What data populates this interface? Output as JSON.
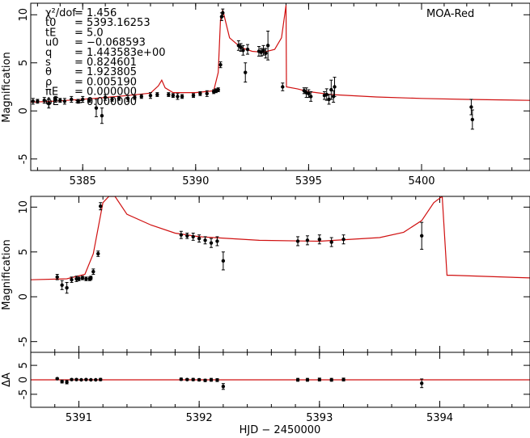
{
  "observatory_label": "MOA-Red",
  "x_axis_title": "HJD − 2450000",
  "y_axis_title": "Magnification",
  "resid_axis_title": "ΔA",
  "params": [
    {
      "name": "χ²/dof",
      "value": "= 1.456"
    },
    {
      "name": "t0",
      "value": "= 5393.16253"
    },
    {
      "name": "tE",
      "value": "= 5.0"
    },
    {
      "name": "u0",
      "value": "= −0.068593"
    },
    {
      "name": "q",
      "value": "= 1.443583e+00"
    },
    {
      "name": "s",
      "value": "= 0.824601"
    },
    {
      "name": "θ",
      "value": "= 1.923805"
    },
    {
      "name": "ρ",
      "value": "= 0.005190"
    },
    {
      "name": "πE",
      "value": "= 0.000000"
    },
    {
      "name": "ϕE",
      "value": "= 0.000000"
    }
  ],
  "chart_data": [
    {
      "type": "line",
      "panel": "top",
      "xlabel": "",
      "ylabel": "Magnification",
      "xlim": [
        5382.7,
        5404.8
      ],
      "ylim": [
        -6.2,
        11.2
      ],
      "xticks": [
        5385,
        5390,
        5395,
        5400
      ],
      "yticks": [
        -5,
        0,
        5,
        10
      ],
      "model": {
        "name": "",
        "x": [
          5382.7,
          5384,
          5385.5,
          5387,
          5388,
          5388.35,
          5388.5,
          5388.65,
          5389,
          5390,
          5390.8,
          5391.0,
          5391.1,
          5391.2,
          5391.5,
          5392.0,
          5392.5,
          5393.0,
          5393.5,
          5393.8,
          5394.0,
          5394.02,
          5394.5,
          5395,
          5396,
          5398,
          5400,
          5402,
          5404.8
        ],
        "y": [
          0.9,
          1.05,
          1.3,
          1.6,
          1.85,
          2.6,
          3.2,
          2.4,
          1.9,
          1.9,
          2.1,
          4.0,
          9.5,
          10.5,
          7.6,
          6.6,
          6.2,
          6.1,
          6.4,
          7.6,
          11.0,
          2.5,
          2.3,
          2.0,
          1.7,
          1.45,
          1.3,
          1.2,
          1.1
        ]
      },
      "points": {
        "x": [
          5382.8,
          5383.0,
          5383.3,
          5383.5,
          5383.8,
          5384.0,
          5384.2,
          5384.5,
          5384.8,
          5385.0,
          5385.3,
          5385.6,
          5385.85,
          5386.0,
          5386.3,
          5386.6,
          5387.0,
          5387.3,
          5387.6,
          5388.0,
          5388.3,
          5388.8,
          5389.0,
          5389.2,
          5389.4,
          5389.9,
          5390.2,
          5390.5,
          5390.8,
          5390.9,
          5391.0,
          5391.1,
          5391.15,
          5391.2,
          5391.9,
          5392.0,
          5392.1,
          5392.2,
          5392.3,
          5392.8,
          5392.9,
          5393.0,
          5393.1,
          5393.2,
          5393.85,
          5394.8,
          5394.9,
          5395.0,
          5395.1,
          5395.7,
          5395.8,
          5395.9,
          5396.0,
          5396.1,
          5396.15,
          5402.2,
          5402.25
        ],
        "y": [
          1.0,
          1.0,
          1.1,
          0.8,
          1.2,
          1.1,
          1.0,
          1.2,
          1.0,
          1.2,
          1.1,
          0.3,
          -0.5,
          1.4,
          1.2,
          1.3,
          1.3,
          1.4,
          1.5,
          1.6,
          1.7,
          1.7,
          1.6,
          1.5,
          1.5,
          1.6,
          1.8,
          1.8,
          2.0,
          2.1,
          2.2,
          4.8,
          9.8,
          10.2,
          6.8,
          6.6,
          6.3,
          4.0,
          6.4,
          6.2,
          6.1,
          6.3,
          6.0,
          6.8,
          2.5,
          2.1,
          1.9,
          1.8,
          1.5,
          1.6,
          1.7,
          1.2,
          2.2,
          1.5,
          2.5,
          0.4,
          -0.9
        ],
        "err": [
          0.3,
          0.2,
          0.3,
          0.5,
          0.3,
          0.2,
          0.3,
          0.3,
          0.2,
          0.3,
          0.2,
          0.9,
          0.8,
          0.3,
          0.2,
          0.2,
          0.3,
          0.2,
          0.2,
          0.3,
          0.2,
          0.2,
          0.2,
          0.3,
          0.2,
          0.2,
          0.2,
          0.3,
          0.2,
          0.2,
          0.2,
          0.3,
          0.4,
          0.4,
          0.5,
          0.4,
          0.5,
          1.0,
          0.5,
          0.5,
          0.4,
          0.5,
          0.5,
          1.5,
          0.4,
          0.3,
          0.5,
          0.4,
          0.5,
          0.4,
          0.6,
          0.5,
          1.0,
          0.6,
          1.0,
          0.8,
          1.0
        ]
      }
    },
    {
      "type": "line",
      "panel": "middle",
      "xlabel": "",
      "ylabel": "Magnification",
      "xlim": [
        5390.6,
        5394.75
      ],
      "ylim": [
        -6.2,
        11.2
      ],
      "xticks": [
        5391,
        5392,
        5393,
        5394
      ],
      "yticks": [
        -5,
        0,
        5,
        10
      ],
      "model": {
        "name": "",
        "x": [
          5390.6,
          5390.9,
          5391.05,
          5391.12,
          5391.2,
          5391.25,
          5391.3,
          5391.4,
          5391.6,
          5391.8,
          5392.0,
          5392.5,
          5393.0,
          5393.5,
          5393.7,
          5393.85,
          5393.95,
          5394.02,
          5394.06,
          5394.1,
          5394.75
        ],
        "y": [
          1.9,
          2.0,
          2.5,
          4.8,
          10.5,
          11.2,
          11.2,
          9.2,
          8.0,
          7.1,
          6.7,
          6.3,
          6.2,
          6.6,
          7.2,
          8.5,
          10.5,
          11.2,
          2.4,
          2.4,
          2.1
        ]
      },
      "points": {
        "x": [
          5390.82,
          5390.86,
          5390.9,
          5390.94,
          5390.98,
          5391.0,
          5391.03,
          5391.06,
          5391.09,
          5391.1,
          5391.12,
          5391.16,
          5391.18,
          5391.85,
          5391.9,
          5391.95,
          5392.0,
          5392.05,
          5392.1,
          5392.15,
          5392.2,
          5392.82,
          5392.9,
          5393.0,
          5393.1,
          5393.2,
          5393.85
        ],
        "y": [
          2.2,
          1.3,
          1.0,
          1.9,
          2.0,
          2.0,
          2.1,
          2.0,
          2.0,
          2.1,
          2.8,
          4.8,
          10.1,
          6.9,
          6.8,
          6.7,
          6.5,
          6.3,
          6.0,
          6.2,
          4.0,
          6.2,
          6.3,
          6.4,
          6.1,
          6.4,
          6.8
        ],
        "err": [
          0.3,
          0.5,
          0.6,
          0.3,
          0.3,
          0.2,
          0.2,
          0.2,
          0.2,
          0.2,
          0.3,
          0.3,
          0.4,
          0.4,
          0.3,
          0.4,
          0.4,
          0.4,
          0.5,
          0.5,
          1.0,
          0.5,
          0.5,
          0.5,
          0.5,
          0.5,
          1.5
        ]
      }
    },
    {
      "type": "scatter",
      "panel": "residuals",
      "xlabel": "HJD − 2450000",
      "ylabel": "ΔA",
      "xlim": [
        5390.6,
        5394.75
      ],
      "ylim": [
        -9.5,
        9.5
      ],
      "xticks": [
        5391,
        5392,
        5393,
        5394
      ],
      "yticks": [
        -5,
        0,
        5
      ],
      "points": {
        "x": [
          5390.82,
          5390.86,
          5390.9,
          5390.94,
          5390.98,
          5391.02,
          5391.06,
          5391.1,
          5391.14,
          5391.18,
          5391.85,
          5391.9,
          5391.95,
          5392.0,
          5392.05,
          5392.1,
          5392.15,
          5392.2,
          5392.82,
          5392.9,
          5393.0,
          5393.1,
          5393.2,
          5393.85
        ],
        "y": [
          0.4,
          -0.6,
          -0.8,
          0.1,
          0.1,
          0.0,
          0.1,
          0.0,
          0.0,
          0.1,
          0.2,
          0.1,
          0.1,
          0.0,
          -0.2,
          0.0,
          -0.1,
          -2.3,
          0.0,
          0.0,
          0.1,
          0.0,
          0.1,
          -1.2
        ],
        "err": [
          0.3,
          0.5,
          0.6,
          0.3,
          0.3,
          0.2,
          0.2,
          0.2,
          0.2,
          0.4,
          0.4,
          0.3,
          0.4,
          0.4,
          0.4,
          0.5,
          0.5,
          1.0,
          0.5,
          0.5,
          0.5,
          0.5,
          0.5,
          1.5
        ]
      }
    }
  ]
}
